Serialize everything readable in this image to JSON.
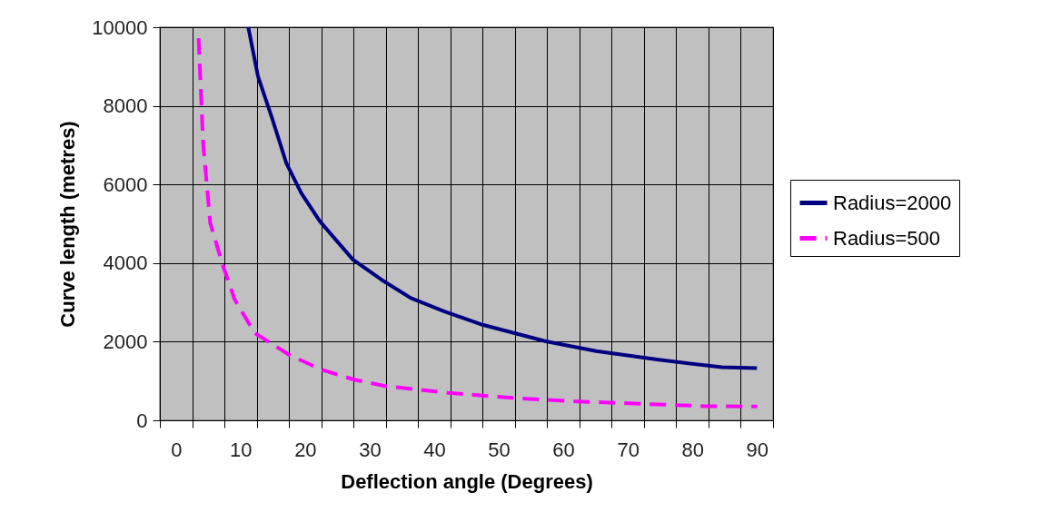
{
  "chart_data": {
    "type": "line",
    "xlabel": "Deflection angle (Degrees)",
    "ylabel": "Curve length (metres)",
    "xlim": [
      -2.5,
      92.5
    ],
    "xticks": [
      {
        "value": -2.5,
        "label": null
      },
      0,
      {
        "value": 2.5,
        "label": null
      },
      {
        "value": 7.5,
        "label": null
      },
      10,
      {
        "value": 12.5,
        "label": null
      },
      {
        "value": 17.5,
        "label": null
      },
      20,
      {
        "value": 22.5,
        "label": null
      },
      {
        "value": 27.5,
        "label": null
      },
      30,
      {
        "value": 32.5,
        "label": null
      },
      {
        "value": 37.5,
        "label": null
      },
      40,
      {
        "value": 42.5,
        "label": null
      },
      {
        "value": 47.5,
        "label": null
      },
      50,
      {
        "value": 52.5,
        "label": null
      },
      {
        "value": 57.5,
        "label": null
      },
      60,
      {
        "value": 62.5,
        "label": null
      },
      {
        "value": 67.5,
        "label": null
      },
      70,
      {
        "value": 72.5,
        "label": null
      },
      {
        "value": 77.5,
        "label": null
      },
      80,
      {
        "value": 82.5,
        "label": null
      },
      {
        "value": 87.5,
        "label": null
      },
      90,
      {
        "value": 92.5,
        "label": null
      }
    ],
    "ylim": [
      0,
      10000
    ],
    "yticks": [
      0,
      2000,
      4000,
      6000,
      8000,
      10000
    ],
    "grid": true,
    "legend": "right",
    "marker": "none",
    "series": [
      {
        "name": "Radius=2000",
        "color": "#000080",
        "line_style": "solid",
        "x": [
          11.2,
          12.7,
          14.8,
          17.1,
          19.4,
          22.3,
          27.4,
          31.8,
          36.4,
          41.6,
          47.5,
          57.3,
          65.1,
          74.8,
          84.6,
          90
        ],
        "values": [
          10000,
          8750,
          7730,
          6540,
          5780,
          5060,
          4090,
          3580,
          3110,
          2770,
          2430,
          2010,
          1760,
          1540,
          1350,
          1330
        ]
      },
      {
        "name": "Radius=500",
        "color": "#ff00ff",
        "line_style": "dashed",
        "x": [
          3.5,
          4.2,
          5.3,
          7.3,
          9.1,
          12.2,
          17.5,
          22.5,
          27.5,
          32.4,
          42.2,
          52.2,
          62.2,
          72.2,
          82,
          90
        ],
        "values": [
          9720,
          7050,
          5020,
          3920,
          3070,
          2220,
          1670,
          1290,
          1040,
          870,
          700,
          570,
          480,
          420,
          360,
          350
        ]
      }
    ]
  }
}
